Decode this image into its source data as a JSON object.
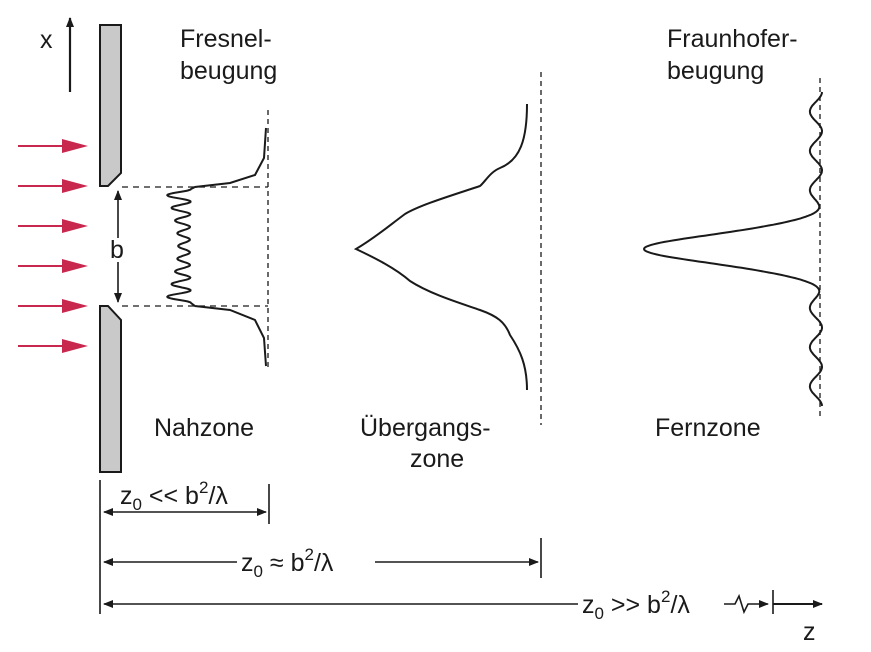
{
  "labels": {
    "axis_x": "x",
    "axis_z": "z",
    "slit_width": "b",
    "fresnel_line1": "Fresnel-",
    "fresnel_line2": "beugung",
    "fraunhofer_line1": "Fraunhofer-",
    "fraunhofer_line2": "beugung",
    "near_zone": "Nahzone",
    "transition_line1": "Übergangs-",
    "transition_line2": "zone",
    "far_zone": "Fernzone"
  },
  "distances": {
    "near": {
      "var": "z",
      "sub": "0",
      "rel": " << b",
      "exp": "2",
      "tail": "/λ"
    },
    "transition": {
      "var": "z",
      "sub": "0",
      "rel": " ≈ b",
      "exp": "2",
      "tail": "/λ"
    },
    "far": {
      "var": "z",
      "sub": "0",
      "rel": " >> b",
      "exp": "2",
      "tail": "/λ"
    }
  },
  "colors": {
    "incident_arrows": "#c8284e",
    "ink": "#1a1a1a",
    "screen_fill": "#c9c9c9"
  },
  "incident_arrow_count": 6
}
